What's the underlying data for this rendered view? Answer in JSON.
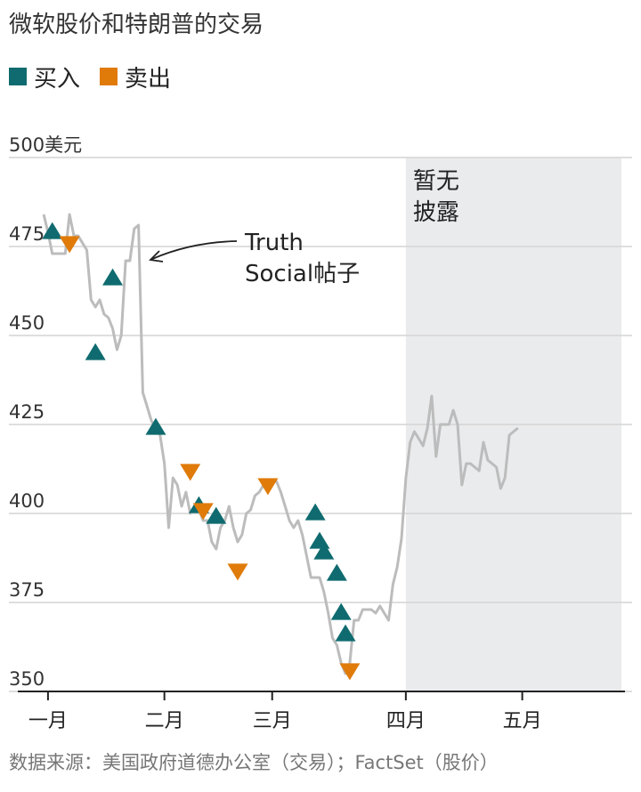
{
  "title": "微软股价和特朗普的交易",
  "legend": {
    "buy_label": "买入",
    "sell_label": "卖出",
    "buy_color": "#0f6b6f",
    "sell_color": "#e07b0a"
  },
  "source": "数据来源：美国政府道德办公室（交易）；FactSet（股价）",
  "chart_data": {
    "type": "line",
    "ylim": [
      350,
      500
    ],
    "y_ticks": [
      {
        "value": 500,
        "label": "500美元"
      },
      {
        "value": 475,
        "label": "475"
      },
      {
        "value": 450,
        "label": "450"
      },
      {
        "value": 425,
        "label": "425"
      },
      {
        "value": 400,
        "label": "400"
      },
      {
        "value": 375,
        "label": "375"
      },
      {
        "value": 350,
        "label": "350"
      }
    ],
    "x_range": [
      0,
      140
    ],
    "x_ticks": [
      {
        "value": 7,
        "label": "一月"
      },
      {
        "value": 34,
        "label": "二月"
      },
      {
        "value": 59,
        "label": "三月"
      },
      {
        "value": 90,
        "label": "四月"
      },
      {
        "value": 117,
        "label": "五月"
      }
    ],
    "grid": true,
    "no_disclosure": {
      "from": 90,
      "to": 140,
      "label_line1": "暂无",
      "label_line2": "披露"
    },
    "annotation": {
      "line1": "Truth",
      "line2": "Social帖子"
    },
    "series": [
      {
        "price": [
          [
            6,
            484
          ],
          [
            7,
            479
          ],
          [
            8,
            473
          ],
          [
            9,
            473
          ],
          [
            10,
            473
          ],
          [
            11,
            473
          ],
          [
            12,
            484
          ],
          [
            13,
            478
          ],
          [
            14,
            478
          ],
          [
            15,
            476
          ],
          [
            16,
            474
          ],
          [
            17,
            460
          ],
          [
            18,
            458
          ],
          [
            19,
            460
          ],
          [
            20,
            456
          ],
          [
            21,
            455
          ],
          [
            22,
            452
          ],
          [
            23,
            446
          ],
          [
            24,
            450
          ],
          [
            25,
            471
          ],
          [
            26,
            471
          ],
          [
            27,
            480
          ],
          [
            28,
            481
          ],
          [
            29,
            434
          ],
          [
            30,
            430
          ],
          [
            31,
            426
          ],
          [
            32,
            424
          ],
          [
            33,
            422
          ],
          [
            34,
            414
          ],
          [
            35,
            396
          ],
          [
            36,
            410
          ],
          [
            37,
            408
          ],
          [
            38,
            402
          ],
          [
            39,
            406
          ],
          [
            40,
            400
          ],
          [
            41,
            402
          ],
          [
            42,
            401
          ],
          [
            43,
            398
          ],
          [
            44,
            398
          ],
          [
            45,
            392
          ],
          [
            46,
            390
          ],
          [
            47,
            396
          ],
          [
            48,
            398
          ],
          [
            49,
            402
          ],
          [
            50,
            396
          ],
          [
            51,
            392
          ],
          [
            52,
            394
          ],
          [
            53,
            400
          ],
          [
            54,
            401
          ],
          [
            55,
            405
          ],
          [
            56,
            406
          ],
          [
            57,
            408
          ],
          [
            58,
            408
          ],
          [
            59,
            409
          ],
          [
            60,
            409
          ],
          [
            61,
            406
          ],
          [
            62,
            402
          ],
          [
            63,
            398
          ],
          [
            64,
            396
          ],
          [
            65,
            398
          ],
          [
            66,
            394
          ],
          [
            67,
            388
          ],
          [
            68,
            382
          ],
          [
            69,
            382
          ],
          [
            70,
            382
          ],
          [
            71,
            378
          ],
          [
            72,
            372
          ],
          [
            73,
            365
          ],
          [
            74,
            363
          ],
          [
            75,
            358
          ],
          [
            76,
            355
          ],
          [
            77,
            358
          ],
          [
            78,
            370
          ],
          [
            79,
            370
          ],
          [
            80,
            373
          ],
          [
            81,
            373
          ],
          [
            82,
            373
          ],
          [
            83,
            372
          ],
          [
            84,
            374
          ],
          [
            85,
            372
          ],
          [
            86,
            370
          ],
          [
            87,
            380
          ],
          [
            88,
            385
          ],
          [
            89,
            393
          ],
          [
            90,
            410
          ],
          [
            91,
            420
          ],
          [
            92,
            423
          ],
          [
            93,
            421
          ],
          [
            94,
            419
          ],
          [
            95,
            424
          ],
          [
            96,
            433
          ],
          [
            97,
            416
          ],
          [
            98,
            425
          ],
          [
            99,
            425
          ],
          [
            100,
            425
          ],
          [
            101,
            429
          ],
          [
            102,
            425
          ],
          [
            103,
            408
          ],
          [
            104,
            414
          ],
          [
            105,
            414
          ],
          [
            106,
            413
          ],
          [
            107,
            412
          ],
          [
            108,
            420
          ],
          [
            109,
            415
          ],
          [
            110,
            414
          ],
          [
            111,
            413
          ],
          [
            112,
            407
          ],
          [
            113,
            410
          ],
          [
            114,
            422
          ],
          [
            115,
            423
          ],
          [
            116,
            424
          ]
        ]
      }
    ],
    "buys": [
      {
        "x": 8,
        "y": 479
      },
      {
        "x": 22,
        "y": 466
      },
      {
        "x": 18,
        "y": 445
      },
      {
        "x": 32,
        "y": 424
      },
      {
        "x": 42,
        "y": 402
      },
      {
        "x": 46,
        "y": 399
      },
      {
        "x": 69,
        "y": 400
      },
      {
        "x": 70,
        "y": 392
      },
      {
        "x": 71,
        "y": 389
      },
      {
        "x": 74,
        "y": 383
      },
      {
        "x": 75,
        "y": 372
      },
      {
        "x": 76,
        "y": 366
      }
    ],
    "sells": [
      {
        "x": 12,
        "y": 476
      },
      {
        "x": 40,
        "y": 412
      },
      {
        "x": 43,
        "y": 401
      },
      {
        "x": 51,
        "y": 384
      },
      {
        "x": 58,
        "y": 408
      },
      {
        "x": 77,
        "y": 356
      }
    ]
  }
}
